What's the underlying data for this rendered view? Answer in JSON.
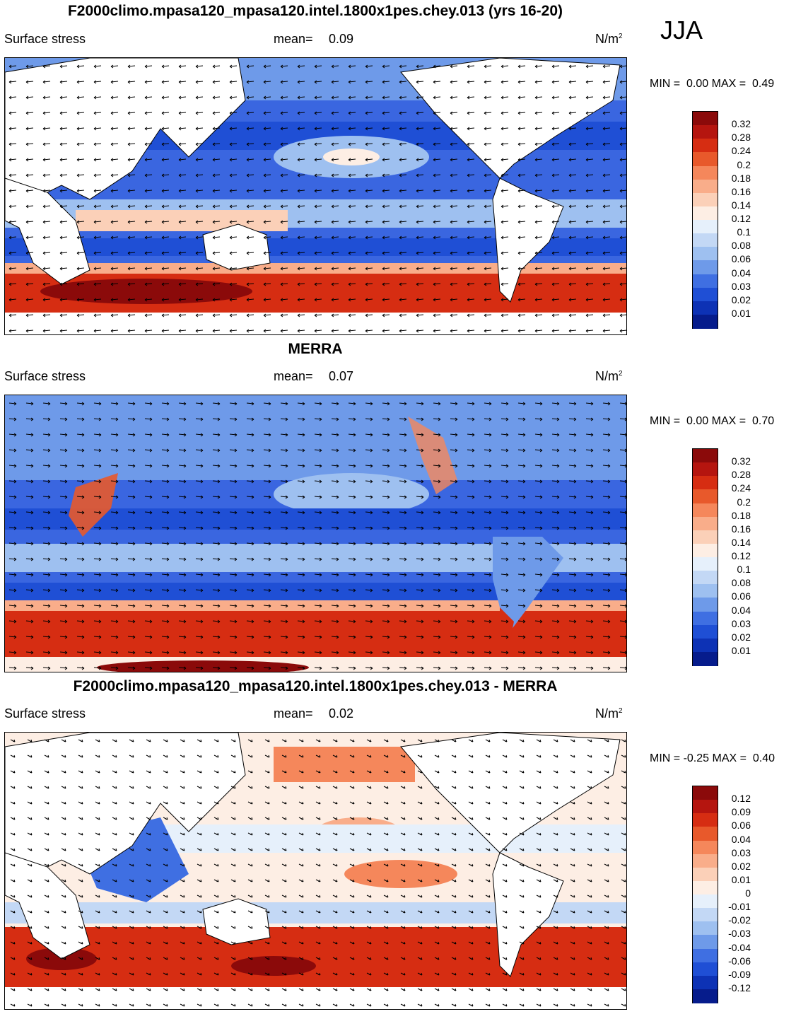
{
  "season": "JJA",
  "panels": [
    {
      "title": "F2000climo.mpasa120_mpasa120.intel.1800x1pes.chey.013 (yrs 16-20)",
      "variable": "Surface stress",
      "mean_label": "mean=",
      "mean_value": "0.09",
      "units_base": "N/m",
      "units_exp": "2",
      "min_label": "MIN =",
      "min_value": "0.00",
      "max_label": "MAX =",
      "max_value": "0.49",
      "colorbar_ticks": [
        "0.32",
        "0.28",
        "0.24",
        "0.2",
        "0.18",
        "0.16",
        "0.14",
        "0.12",
        "0.1",
        "0.08",
        "0.06",
        "0.04",
        "0.03",
        "0.02",
        "0.01"
      ],
      "colors": [
        "#8b0a0a",
        "#b5150f",
        "#d62d12",
        "#e8592b",
        "#f5875b",
        "#f9ad8a",
        "#fbd0b8",
        "#fdeee4",
        "#e6f0fb",
        "#c3d8f5",
        "#9ec0f0",
        "#6e9ae9",
        "#3f6fe2",
        "#1f4fd5",
        "#0d32b5",
        "#061c8c"
      ]
    },
    {
      "title": "MERRA",
      "variable": "Surface stress",
      "mean_label": "mean=",
      "mean_value": "0.07",
      "units_base": "N/m",
      "units_exp": "2",
      "min_label": "MIN =",
      "min_value": "0.00",
      "max_label": "MAX =",
      "max_value": "0.70",
      "colorbar_ticks": [
        "0.32",
        "0.28",
        "0.24",
        "0.2",
        "0.18",
        "0.16",
        "0.14",
        "0.12",
        "0.1",
        "0.08",
        "0.06",
        "0.04",
        "0.03",
        "0.02",
        "0.01"
      ],
      "colors": [
        "#8b0a0a",
        "#b5150f",
        "#d62d12",
        "#e8592b",
        "#f5875b",
        "#f9ad8a",
        "#fbd0b8",
        "#fdeee4",
        "#e6f0fb",
        "#c3d8f5",
        "#9ec0f0",
        "#6e9ae9",
        "#3f6fe2",
        "#1f4fd5",
        "#0d32b5",
        "#061c8c"
      ]
    },
    {
      "title": "F2000climo.mpasa120_mpasa120.intel.1800x1pes.chey.013 - MERRA",
      "variable": "Surface stress",
      "mean_label": "mean=",
      "mean_value": "0.02",
      "units_base": "N/m",
      "units_exp": "2",
      "min_label": "MIN =",
      "min_value": "-0.25",
      "max_label": "MAX =",
      "max_value": "0.40",
      "colorbar_ticks": [
        "0.12",
        "0.09",
        "0.06",
        "0.04",
        "0.03",
        "0.02",
        "0.01",
        "0",
        "-0.01",
        "-0.02",
        "-0.03",
        "-0.04",
        "-0.06",
        "-0.09",
        "-0.12"
      ],
      "colors": [
        "#8b0a0a",
        "#b5150f",
        "#d62d12",
        "#e8592b",
        "#f5875b",
        "#f9ad8a",
        "#fbd0b8",
        "#fdeee4",
        "#e6f0fb",
        "#c3d8f5",
        "#9ec0f0",
        "#6e9ae9",
        "#3f6fe2",
        "#1f4fd5",
        "#0d32b5",
        "#061c8c"
      ]
    }
  ]
}
